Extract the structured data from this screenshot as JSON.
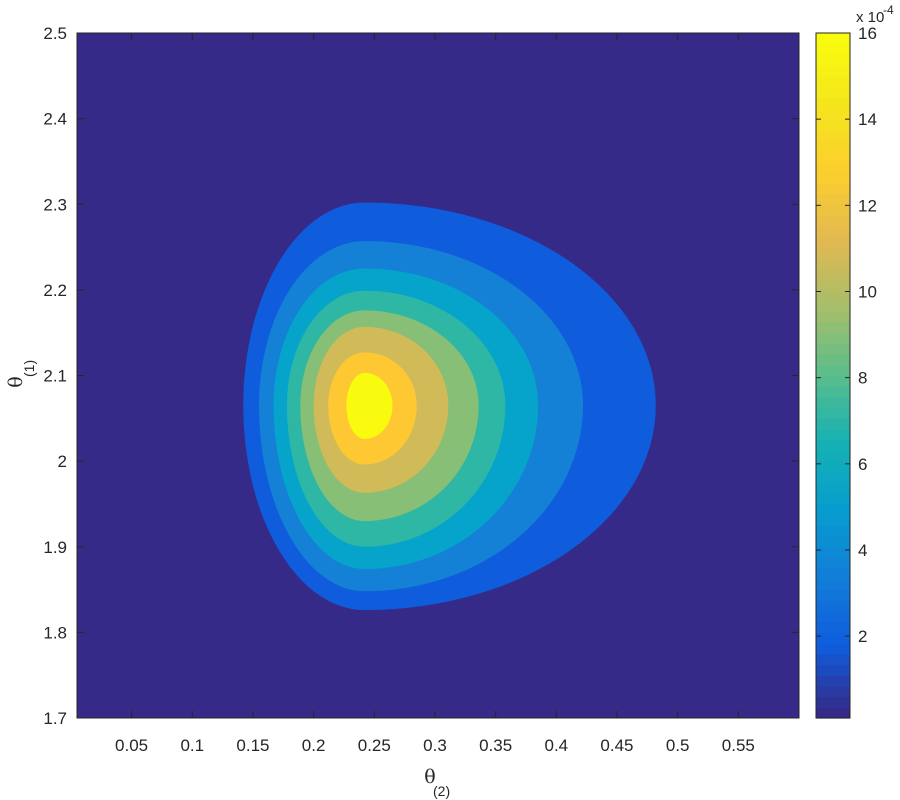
{
  "chart_data": {
    "type": "contour",
    "filled": true,
    "xlabel": {
      "symbol": "θ",
      "subscript": "(2)"
    },
    "ylabel": {
      "symbol": "θ",
      "subscript": "(1)"
    },
    "xlim": [
      0.005,
      0.6
    ],
    "ylim": [
      1.7,
      2.5
    ],
    "xticks": [
      "0.05",
      "0.1",
      "0.15",
      "0.2",
      "0.25",
      "0.3",
      "0.35",
      "0.4",
      "0.45",
      "0.5",
      "0.55"
    ],
    "xtick_values": [
      0.05,
      0.1,
      0.15,
      0.2,
      0.25,
      0.3,
      0.35,
      0.4,
      0.45,
      0.5,
      0.55
    ],
    "yticks": [
      "1.7",
      "1.8",
      "1.9",
      "2",
      "2.1",
      "2.2",
      "2.3",
      "2.4",
      "2.5"
    ],
    "ytick_values": [
      1.7,
      1.8,
      1.9,
      2.0,
      2.1,
      2.2,
      2.3,
      2.4,
      2.5
    ],
    "peak": {
      "x": 0.242,
      "y": 2.065
    },
    "background_color": "#352a87",
    "contours": [
      {
        "level": 2,
        "color": "#0f5cdd",
        "xmin": 0.142,
        "xmax": 0.482,
        "ymin": 1.826,
        "ymax": 2.302
      },
      {
        "level": 4,
        "color": "#1481d6",
        "xmin": 0.155,
        "xmax": 0.422,
        "ymin": 1.848,
        "ymax": 2.257
      },
      {
        "level": 6,
        "color": "#06a4ca",
        "xmin": 0.167,
        "xmax": 0.385,
        "ymin": 1.874,
        "ymax": 2.225
      },
      {
        "level": 8,
        "color": "#2eb7a4",
        "xmin": 0.178,
        "xmax": 0.358,
        "ymin": 1.9,
        "ymax": 2.199
      },
      {
        "level": 10,
        "color": "#87bf77",
        "xmin": 0.189,
        "xmax": 0.336,
        "ymin": 1.93,
        "ymax": 2.176
      },
      {
        "level": 12,
        "color": "#d1bb59",
        "xmin": 0.2,
        "xmax": 0.311,
        "ymin": 1.963,
        "ymax": 2.157
      },
      {
        "level": 14,
        "color": "#fec832",
        "xmin": 0.212,
        "xmax": 0.285,
        "ymin": 1.996,
        "ymax": 2.127
      },
      {
        "level": 16,
        "color": "#f9fb0e",
        "xmin": 0.227,
        "xmax": 0.265,
        "ymin": 2.026,
        "ymax": 2.103
      }
    ],
    "colorbar": {
      "min": 0.1,
      "max": 16,
      "ticks": [
        "2",
        "4",
        "6",
        "8",
        "10",
        "12",
        "14",
        "16"
      ],
      "tick_values": [
        2,
        4,
        6,
        8,
        10,
        12,
        14,
        16
      ],
      "exponent_label": "x 10",
      "exponent": "-4",
      "colormap": "parula"
    }
  }
}
